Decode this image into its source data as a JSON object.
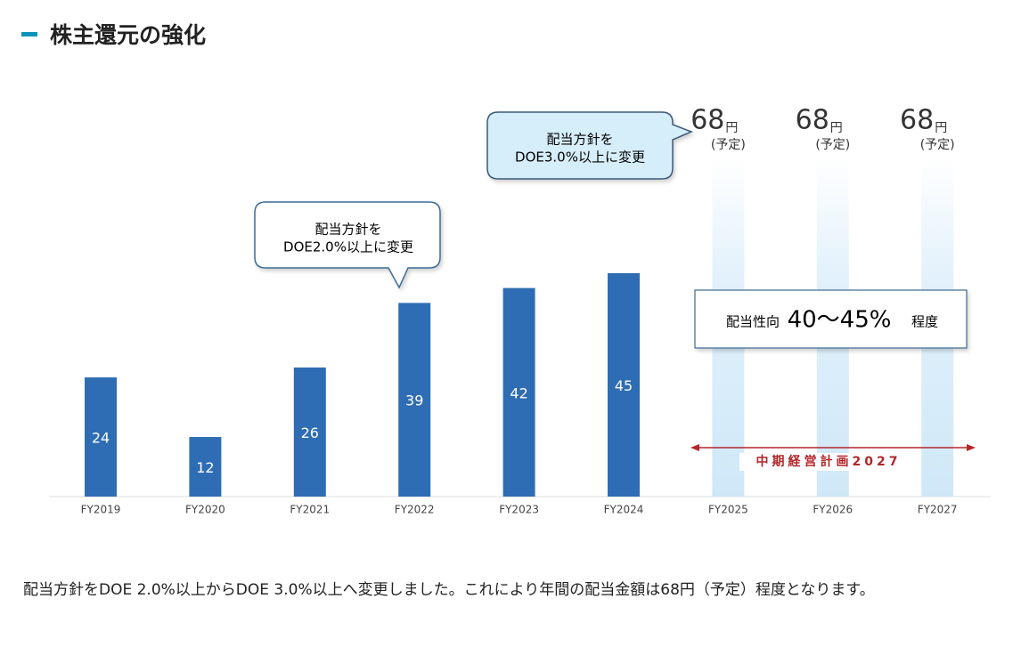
{
  "title": "株主還元の強化",
  "chart_data": {
    "type": "bar",
    "categories": [
      "FY2019",
      "FY2020",
      "FY2021",
      "FY2022",
      "FY2023",
      "FY2024",
      "FY2025",
      "FY2026",
      "FY2027"
    ],
    "values": [
      24,
      12,
      26,
      39,
      42,
      45,
      68,
      68,
      68
    ],
    "colors": [
      "#2e6db4",
      "#2e6db4",
      "#2e6db4",
      "#2e6db4",
      "#2e6db4",
      "#2e6db4",
      "#cfe8f8",
      "#cfe8f8",
      "#cfe8f8"
    ],
    "unit": "円",
    "notes": [
      null,
      null,
      null,
      null,
      null,
      null,
      "(予定)",
      "(予定)",
      "(予定)"
    ],
    "callouts": [
      {
        "lines": [
          "配当方針を",
          "DOE2.0%以上に変更"
        ]
      },
      {
        "lines": [
          "配当方針を",
          "DOE3.0%以上に変更"
        ]
      }
    ],
    "payout": {
      "label": "配当性向",
      "value": "40〜45%",
      "suffix": "程度"
    },
    "plan": "中期経営計画2027"
  },
  "body": "配当方針をDOE 2.0%以上からDOE 3.0%以上へ変更しました。これにより年間の配当金額は68円（予定）程度となります。"
}
